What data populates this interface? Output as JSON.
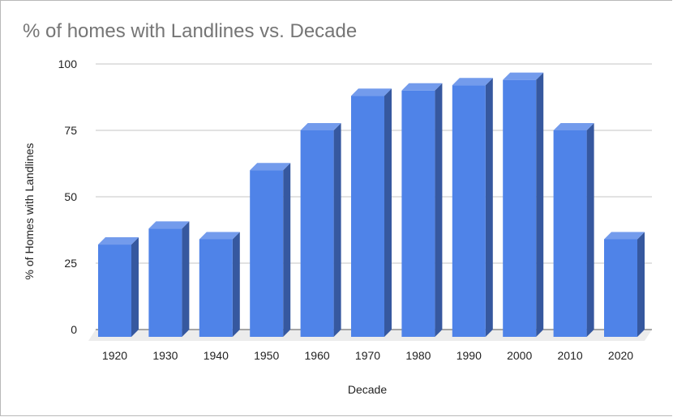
{
  "chart_data": {
    "type": "bar",
    "style": "3d-column",
    "title": "% of homes with Landlines vs. Decade",
    "xlabel": "Decade",
    "ylabel": "% of Homes with Landlines",
    "categories": [
      "1920",
      "1930",
      "1940",
      "1950",
      "1960",
      "1970",
      "1980",
      "1990",
      "2000",
      "2010",
      "2020"
    ],
    "values": [
      32,
      38,
      34,
      60,
      75,
      88,
      90,
      92,
      94,
      75,
      34
    ],
    "series": [
      {
        "name": "% of Homes with Landlines",
        "values": [
          32,
          38,
          34,
          60,
          75,
          88,
          90,
          92,
          94,
          75,
          34
        ]
      }
    ],
    "yticks": [
      0,
      25,
      50,
      75,
      100
    ],
    "ylim": [
      0,
      100
    ],
    "grid": true,
    "legend": "none",
    "colors": {
      "bar_front": "#4f83e8",
      "bar_top": "#739bec",
      "bar_side": "#36589f",
      "gridline": "#d9d9d9",
      "floor": "#ececec",
      "baseline": "#555555",
      "title": "#757575"
    }
  }
}
